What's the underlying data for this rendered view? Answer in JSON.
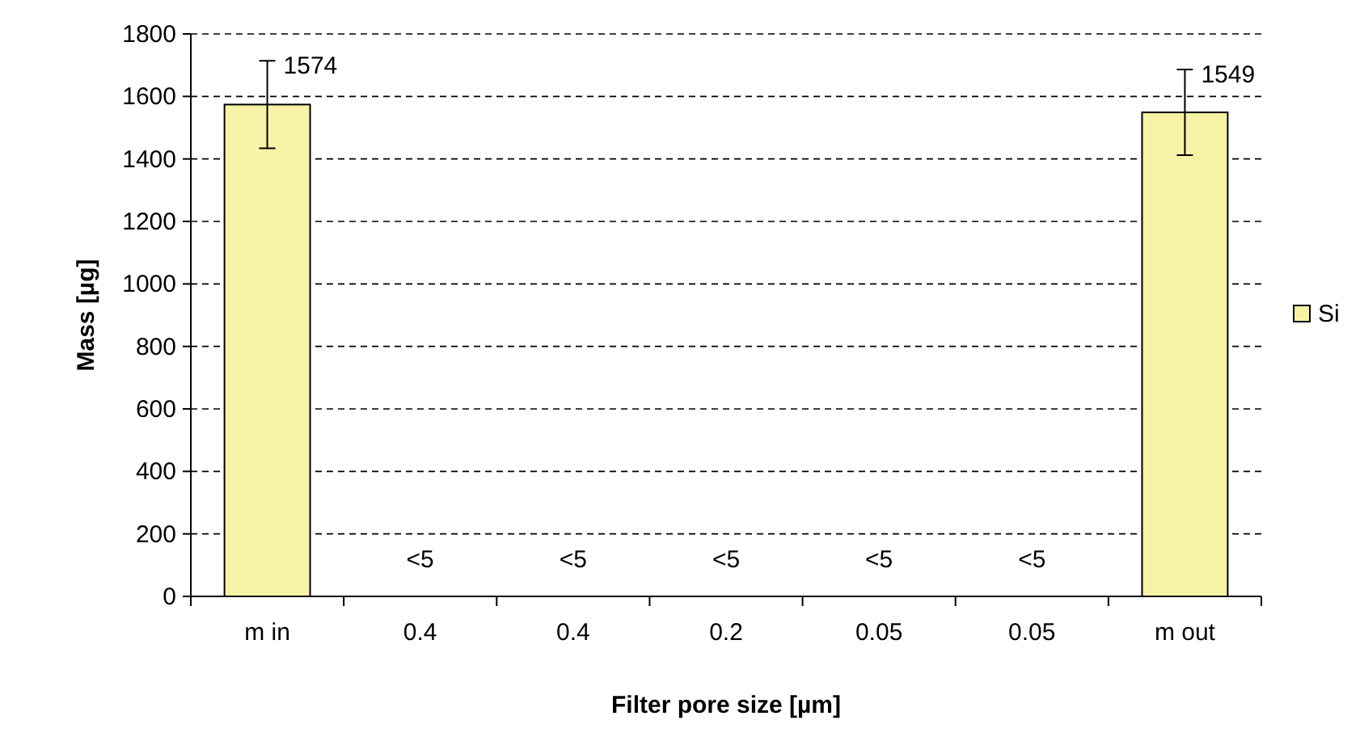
{
  "chart_data": {
    "type": "bar",
    "xlabel": "Filter pore size [µm]",
    "ylabel": "Mass [µg]",
    "categories": [
      "m in",
      "0.4",
      "0.4",
      "0.2",
      "0.05",
      "0.05",
      "m out"
    ],
    "series": [
      {
        "name": "Si",
        "color": "#f7f3a6",
        "values": [
          1574,
          null,
          null,
          null,
          null,
          null,
          1549
        ],
        "errors": [
          140,
          null,
          null,
          null,
          null,
          null,
          137
        ],
        "value_labels": [
          "1574",
          "<5",
          "<5",
          "<5",
          "<5",
          "<5",
          "1549"
        ]
      }
    ],
    "ylim": [
      0,
      1800
    ],
    "yticks": [
      0,
      200,
      400,
      600,
      800,
      1000,
      1200,
      1400,
      1600,
      1800
    ],
    "grid": "y",
    "legend": "right"
  }
}
